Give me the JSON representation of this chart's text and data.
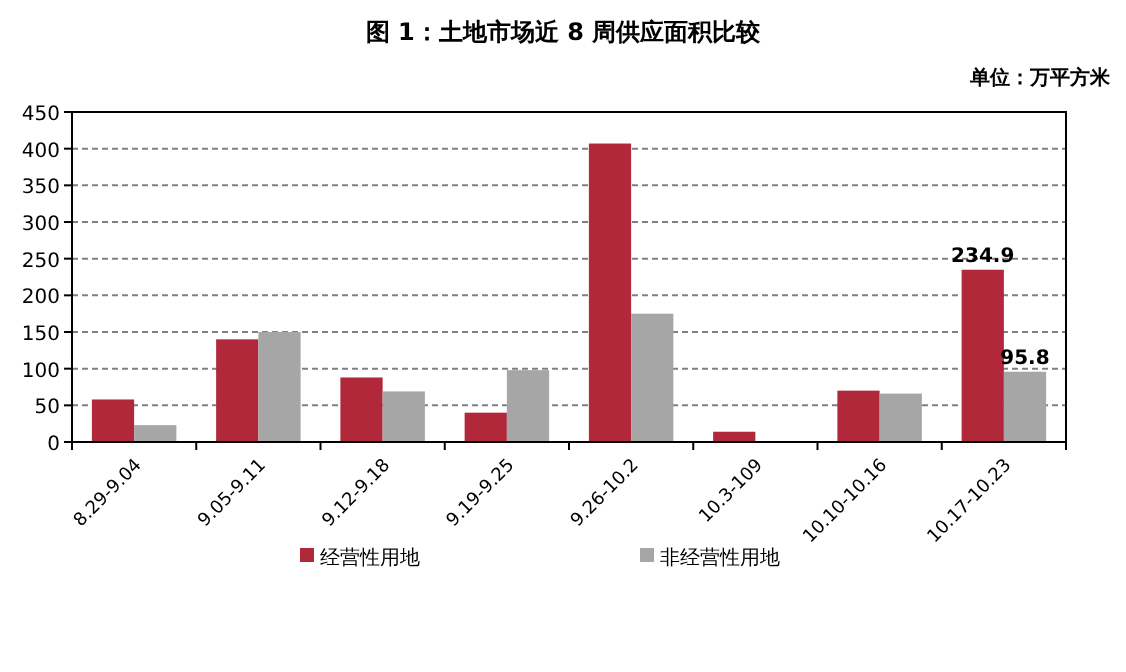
{
  "chart_data": {
    "type": "bar",
    "title": "图 1：土地市场近 8 周供应面积比较",
    "subtitle": "单位：万平方米",
    "categories": [
      "8.29-9.04",
      "9.05-9.11",
      "9.12-9.18",
      "9.19-9.25",
      "9.26-10.2",
      "10.3-109",
      "10.10-10.16",
      "10.17-10.23"
    ],
    "series": [
      {
        "name": "经营性用地",
        "color": "#b0283a",
        "values": [
          58,
          140,
          88,
          40,
          407,
          14,
          70,
          234.9
        ],
        "value_labels": [
          null,
          null,
          null,
          null,
          null,
          null,
          null,
          "234.9"
        ]
      },
      {
        "name": "非经营性用地",
        "color": "#a6a6a6",
        "values": [
          23,
          150,
          69,
          98,
          175,
          0,
          66,
          95.8
        ],
        "value_labels": [
          null,
          null,
          null,
          null,
          null,
          null,
          null,
          "95.8"
        ]
      }
    ],
    "ylim": [
      0,
      450
    ],
    "yticks": [
      0,
      50,
      100,
      150,
      200,
      250,
      300,
      350,
      400,
      450
    ],
    "grid": "y",
    "legend": "bottom"
  }
}
